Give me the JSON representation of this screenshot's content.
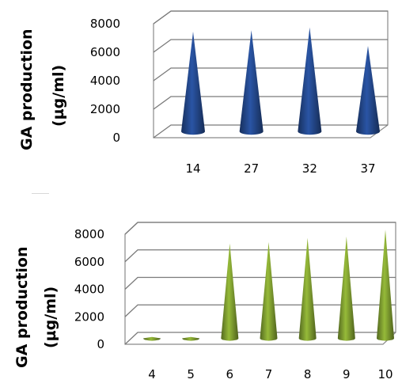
{
  "chart_data": [
    {
      "type": "bar",
      "shape": "cone-3d",
      "ylabel_line1": "GA production",
      "ylabel_line2": "(µg/ml)",
      "ylim": [
        0,
        8000
      ],
      "yticks": [
        "0",
        "2000",
        "4000",
        "6000",
        "8000"
      ],
      "categories": [
        "14",
        "27",
        "32",
        "37"
      ],
      "values": [
        7000,
        7100,
        7300,
        6000
      ],
      "color": "#1f3f7a"
    },
    {
      "type": "bar",
      "shape": "cone-3d",
      "ylabel_line1": "GA production",
      "ylabel_line2": "(µg/ml)",
      "ylim": [
        0,
        8000
      ],
      "yticks": [
        "0",
        "2000",
        "4000",
        "6000",
        "8000"
      ],
      "categories": [
        "4",
        "5",
        "6",
        "7",
        "8",
        "9",
        "10"
      ],
      "values": [
        100,
        100,
        6900,
        7000,
        7300,
        7400,
        7900
      ],
      "color": "#6f8a2a"
    }
  ]
}
